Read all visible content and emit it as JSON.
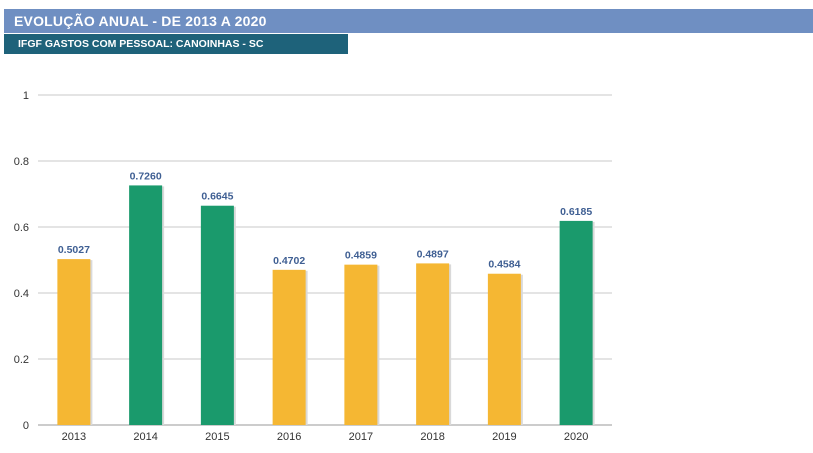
{
  "header": {
    "title": "EVOLUÇÃO ANUAL - DE 2013 A 2020",
    "subtitle": "IFGF GASTOS COM PESSOAL: CANOINHAS - SC"
  },
  "colors": {
    "title_bg": "#6f8fc2",
    "subtitle_bg": "#1e627a",
    "bar_yellow": "#f5b733",
    "bar_green": "#1a9a6c",
    "value_label": "#3f5f93",
    "grid": "#c8c8c8"
  },
  "chart_data": {
    "type": "bar",
    "title": "",
    "xlabel": "",
    "ylabel": "",
    "categories": [
      "2013",
      "2014",
      "2015",
      "2016",
      "2017",
      "2018",
      "2019",
      "2020"
    ],
    "values": [
      0.5027,
      0.726,
      0.6645,
      0.4702,
      0.4859,
      0.4897,
      0.4584,
      0.6185
    ],
    "value_labels": [
      "0.5027",
      "0.7260",
      "0.6645",
      "0.4702",
      "0.4859",
      "0.4897",
      "0.4584",
      "0.6185"
    ],
    "bar_colors": [
      "yellow",
      "green",
      "green",
      "yellow",
      "yellow",
      "yellow",
      "yellow",
      "green"
    ],
    "ylim": [
      0,
      1
    ],
    "yticks": [
      "0",
      "0.2",
      "0.4",
      "0.6",
      "0.8",
      "1"
    ],
    "grid": true
  }
}
